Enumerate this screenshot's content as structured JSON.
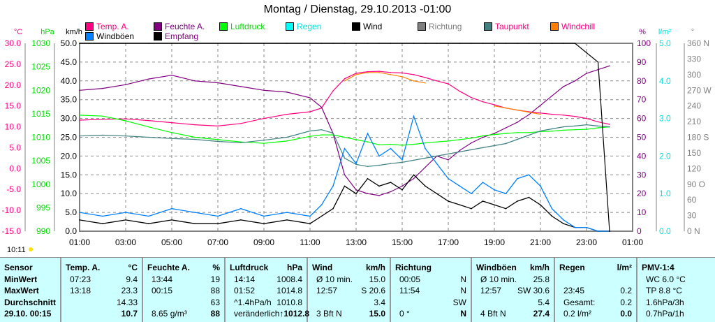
{
  "chart_data": {
    "type": "line",
    "title": "Montag / Dienstag, 29.10.2013  -01:00",
    "x_hours": [
      1,
      2,
      3,
      4,
      5,
      6,
      7,
      8,
      9,
      10,
      11,
      11.5,
      12,
      12.5,
      13,
      13.5,
      14,
      14.5,
      15,
      15.5,
      16,
      16.5,
      17,
      17.5,
      18,
      18.5,
      19,
      19.5,
      20,
      20.5,
      21,
      21.5,
      22,
      22.5,
      23,
      23.5,
      24
    ],
    "x_tick_labels": [
      "01:00",
      "03:00",
      "05:00",
      "07:00",
      "09:00",
      "11:00",
      "13:00",
      "15:00",
      "17:00",
      "19:00",
      "21:00",
      "23:00",
      "01:00"
    ],
    "axes": {
      "temp": {
        "unit": "°C",
        "range": [
          -15,
          30
        ],
        "ticks": [
          "30.0",
          "25.0",
          "20.0",
          "15.0",
          "10.0",
          "5.0",
          "0.0",
          "-5.0",
          "-10.0",
          "-15.0"
        ]
      },
      "pressure": {
        "unit": "hPa",
        "range": [
          990,
          1030
        ],
        "ticks": [
          "1030",
          "1025",
          "1020",
          "1015",
          "1010",
          "1005",
          "1000",
          "995",
          "990"
        ]
      },
      "wind": {
        "unit": "km/h",
        "range": [
          0,
          50
        ],
        "ticks": [
          "50.0",
          "45.0",
          "40.0",
          "35.0",
          "30.0",
          "25.0",
          "20.0",
          "15.0",
          "10.0",
          "5.0",
          "0.0"
        ]
      },
      "humidity": {
        "unit": "%",
        "range": [
          0,
          100
        ],
        "ticks": [
          "100",
          "90",
          "80",
          "70",
          "60",
          "50",
          "40",
          "30",
          "20",
          "10",
          "0"
        ]
      },
      "rain": {
        "unit": "l/m²",
        "range": [
          0,
          5
        ],
        "ticks": [
          "5.0",
          "4.0",
          "3.0",
          "2.0",
          "1.0",
          "0.0"
        ]
      },
      "direction": {
        "unit": "°",
        "range": [
          0,
          360
        ],
        "ticks": [
          "360 N",
          "330",
          "300",
          "270 W",
          "240",
          "210",
          "180 S",
          "150",
          "120",
          "90 O",
          "60",
          "30",
          "0 N"
        ]
      }
    },
    "series": [
      {
        "name": "Temp. A.",
        "axis": "temp",
        "color": "#ff0080",
        "values": [
          11.6,
          11.8,
          11.9,
          11.5,
          11.0,
          10.5,
          10.2,
          10.8,
          12.0,
          13.0,
          13.6,
          14.5,
          18.6,
          21.5,
          22.8,
          23.2,
          23.3,
          23.0,
          22.9,
          22.5,
          21.8,
          21.0,
          20.3,
          18.5,
          17.0,
          16.0,
          15.3,
          14.5,
          14.0,
          13.6,
          13.3,
          13.0,
          12.8,
          12.5,
          12.0,
          11.2,
          10.6
        ]
      },
      {
        "name": "Feuchte A.",
        "axis": "humidity",
        "color": "#800080",
        "values": [
          75,
          76,
          78,
          81,
          83,
          80,
          79,
          77,
          75,
          74,
          71,
          66,
          52,
          30,
          22,
          20,
          19,
          21,
          24,
          28,
          34,
          40,
          38,
          43,
          47,
          50,
          52,
          55,
          58,
          62,
          67,
          72,
          77,
          80,
          84,
          86,
          88
        ]
      },
      {
        "name": "Luftdruck",
        "axis": "pressure",
        "color": "#00ff00",
        "values": [
          1014.7,
          1014.5,
          1013.5,
          1012.2,
          1011.0,
          1010.0,
          1009.5,
          1009.0,
          1008.7,
          1009.2,
          1010.2,
          1010.5,
          1010.5,
          1010.0,
          1009.5,
          1009.0,
          1008.4,
          1008.5,
          1008.3,
          1008.5,
          1008.8,
          1009.0,
          1009.2,
          1009.5,
          1009.8,
          1010.3,
          1010.6,
          1010.8,
          1011.0,
          1011.0,
          1011.2,
          1011.3,
          1011.5,
          1011.6,
          1011.7,
          1012.0,
          1012.2
        ]
      },
      {
        "name": "Taupunkt",
        "axis": "temp",
        "color": "#408080",
        "values": [
          7.8,
          8.0,
          7.8,
          7.5,
          7.2,
          7.0,
          6.5,
          6.2,
          6.8,
          7.5,
          9.0,
          9.3,
          8.5,
          2.5,
          1.0,
          0.5,
          0.8,
          1.2,
          1.5,
          2.0,
          2.5,
          3.0,
          3.5,
          4.0,
          4.5,
          5.0,
          5.5,
          6.0,
          7.0,
          8.0,
          9.0,
          9.5,
          10.0,
          10.2,
          10.5,
          10.2,
          10.0
        ]
      },
      {
        "name": "Wind",
        "axis": "wind",
        "color": "#000000",
        "values": [
          3,
          2,
          3,
          2,
          3,
          2,
          2,
          3,
          2,
          3,
          2,
          4,
          6,
          12,
          10,
          14,
          12,
          13,
          11,
          15,
          12,
          10,
          8,
          7,
          6,
          8,
          7,
          6,
          8,
          9,
          7,
          4,
          2,
          1,
          1,
          0,
          0
        ]
      },
      {
        "name": "Windböen",
        "axis": "wind",
        "color": "#0080ff",
        "values": [
          5,
          4,
          5,
          4,
          6,
          5,
          4,
          6,
          4,
          5,
          4,
          7,
          12,
          22,
          18,
          26,
          20,
          22,
          19,
          30.6,
          22,
          18,
          14,
          12,
          10,
          13,
          11,
          10,
          14,
          15,
          12,
          6,
          3,
          1,
          1,
          0,
          0
        ]
      },
      {
        "name": "Windchill",
        "axis": "temp",
        "color": "#ff8000",
        "values": [
          null,
          null,
          null,
          null,
          null,
          null,
          null,
          null,
          null,
          null,
          null,
          null,
          null,
          21,
          22.5,
          23,
          23,
          22.5,
          22,
          21,
          20.5,
          null,
          null,
          null,
          null,
          null,
          15,
          14.5,
          14,
          13.5,
          13,
          null,
          null,
          null,
          null,
          null,
          null
        ]
      },
      {
        "name": "Empfang",
        "axis": "humidity",
        "color": "#000000",
        "values": [
          100,
          100,
          100,
          100,
          100,
          100,
          100,
          100,
          100,
          100,
          100,
          100,
          100,
          100,
          100,
          100,
          100,
          100,
          100,
          100,
          100,
          100,
          100,
          100,
          100,
          100,
          100,
          100,
          100,
          100,
          100,
          100,
          100,
          100,
          95,
          90,
          0
        ]
      }
    ],
    "legend": [
      {
        "label": "Temp. A.",
        "color": "#ff0080",
        "text_color": "#ff0080"
      },
      {
        "label": "Feuchte A.",
        "color": "#800080",
        "text_color": "#800080"
      },
      {
        "label": "Luftdruck",
        "color": "#00ff00",
        "text_color": "#00dd00"
      },
      {
        "label": "Regen",
        "color": "#00ffff",
        "text_color": "#00e0e0"
      },
      {
        "label": "Wind",
        "color": "#000000",
        "text_color": "#000000"
      },
      {
        "label": "Richtung",
        "color": "#808080",
        "text_color": "#808080"
      },
      {
        "label": "Taupunkt",
        "color": "#408080",
        "text_color": "#ff0080"
      },
      {
        "label": "Windchill",
        "color": "#ff8000",
        "text_color": "#ff0080"
      },
      {
        "label": "Windböen",
        "color": "#0080ff",
        "text_color": "#000000"
      },
      {
        "label": "Empfang",
        "color": "#000000",
        "text_color": "#800080"
      }
    ],
    "marker_time": "10:11"
  },
  "table": {
    "cols": [
      {
        "head": [
          "Sensor",
          ""
        ],
        "rows": [
          [
            "MinWert",
            ""
          ],
          [
            "MaxWert",
            ""
          ],
          [
            "Durchschnitt",
            ""
          ],
          [
            "29.10. 00:15",
            ""
          ]
        ],
        "bold_first": true
      },
      {
        "head": [
          "Temp. A.",
          "°C"
        ],
        "rows": [
          [
            "07:23",
            "9.4"
          ],
          [
            "13:18",
            "23.3"
          ],
          [
            "",
            "14.33"
          ],
          [
            "",
            "10.7"
          ]
        ]
      },
      {
        "head": [
          "Feuchte A.",
          "%"
        ],
        "rows": [
          [
            "13:44",
            "19"
          ],
          [
            "00:15",
            "88"
          ],
          [
            "",
            "63"
          ],
          [
            "8.65 g/m³",
            "88"
          ]
        ]
      },
      {
        "head": [
          "Luftdruck",
          "hPa"
        ],
        "rows": [
          [
            "14:14",
            "1008.4"
          ],
          [
            "01:52",
            "1014.8"
          ],
          [
            "^1.4hPa/h",
            "1010.8"
          ],
          [
            "veränderlich",
            "↑1012.8"
          ]
        ]
      },
      {
        "head": [
          "Wind",
          "km/h"
        ],
        "rows": [
          [
            "Ø 10 min.",
            "15.0"
          ],
          [
            "12:57",
            "S 20.6"
          ],
          [
            "",
            "3.4"
          ],
          [
            "3 Bft N",
            "15.0"
          ]
        ]
      },
      {
        "head": [
          "Richtung",
          ""
        ],
        "rows": [
          [
            "00:05",
            "N"
          ],
          [
            "11:54",
            "N"
          ],
          [
            "",
            "SW"
          ],
          [
            "0 °",
            "N"
          ]
        ]
      },
      {
        "head": [
          "Windböen",
          "km/h"
        ],
        "rows": [
          [
            "Ø 10 min.",
            "25.8"
          ],
          [
            "12:57",
            "SW 30.6"
          ],
          [
            "",
            "5.4"
          ],
          [
            "4 Bft N",
            "27.4"
          ]
        ]
      },
      {
        "head": [
          "Regen",
          "l/m²"
        ],
        "rows": [
          [
            "",
            ""
          ],
          [
            "23:45",
            "0.2"
          ],
          [
            "Gesamt:",
            "0.2"
          ],
          [
            "0.2 l/m²",
            "0.0"
          ]
        ]
      },
      {
        "head": [
          "PMV-1:4",
          ""
        ],
        "rows": [
          [
            "WC 6.0 °C",
            ""
          ],
          [
            "TP 8.8 °C",
            ""
          ],
          [
            "1.6hPa/3h",
            ""
          ],
          [
            "0.7hPa/1h",
            ""
          ]
        ]
      }
    ]
  }
}
